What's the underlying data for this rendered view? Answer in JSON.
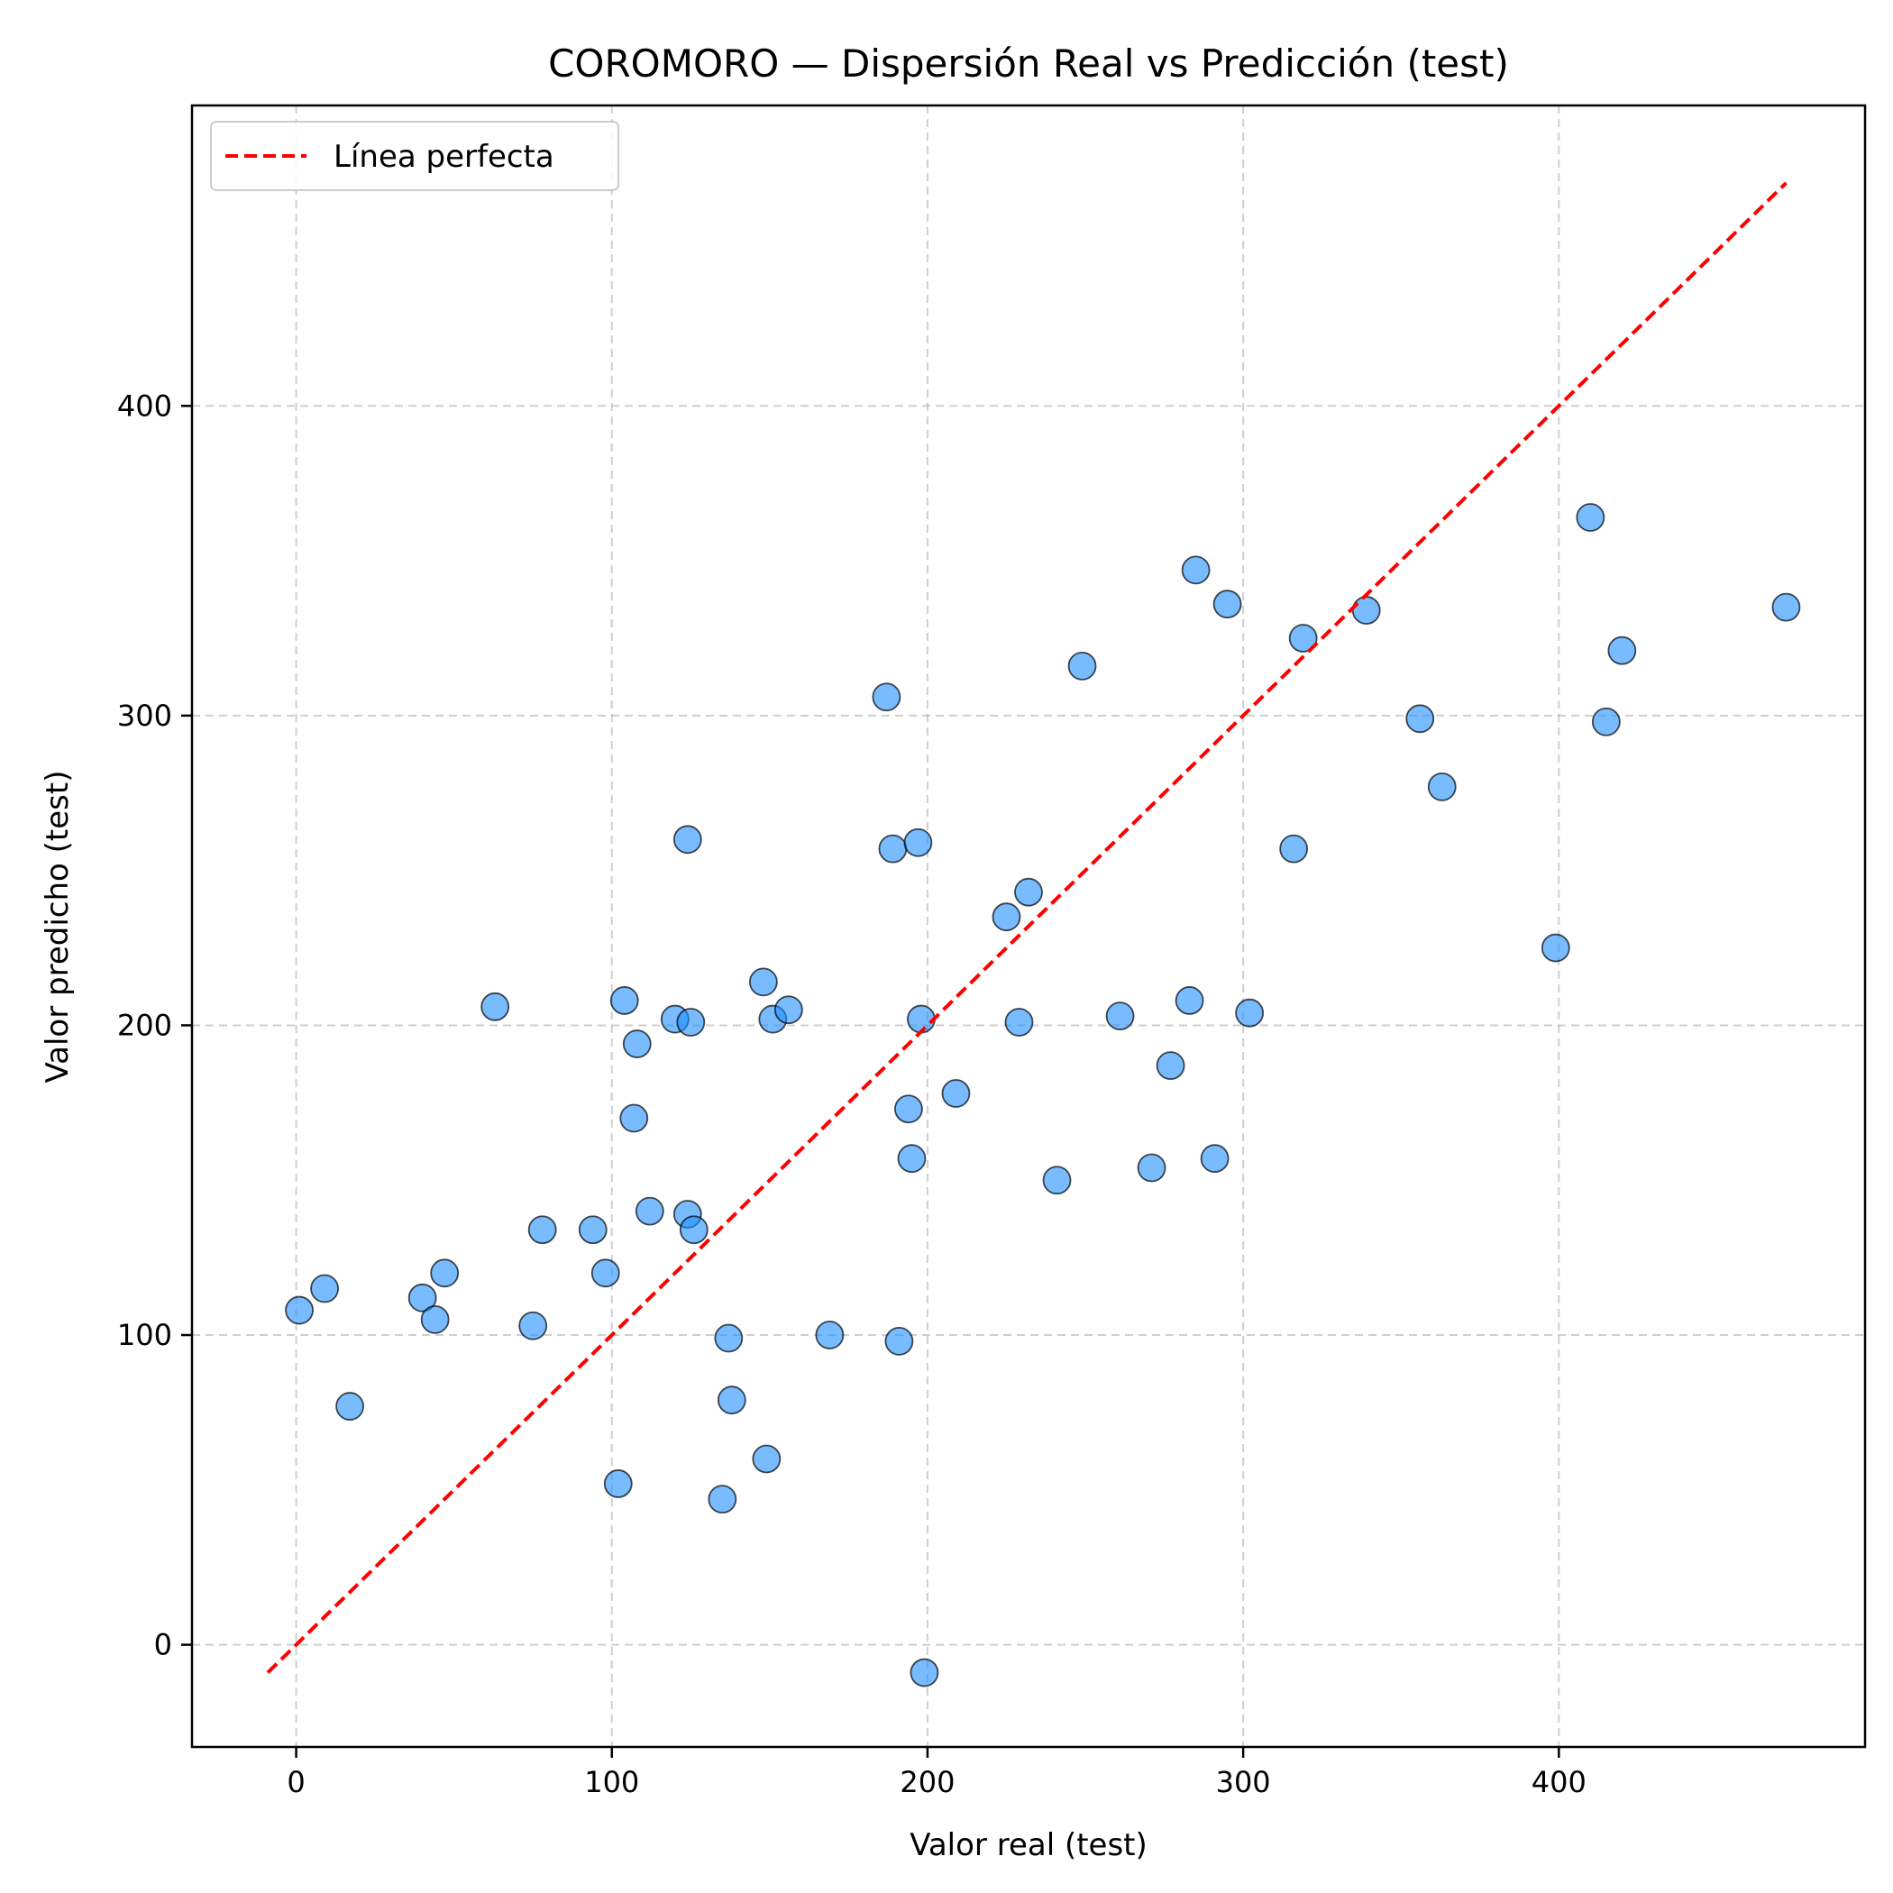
{
  "chart_data": {
    "type": "scatter",
    "title": "COROMORO — Dispersión Real vs Predicción (test)",
    "xlabel": "Valor real (test)",
    "ylabel": "Valor predicho (test)",
    "xlim": [
      -33,
      497
    ],
    "ylim": [
      -33,
      497
    ],
    "xticks": [
      0,
      100,
      200,
      300,
      400
    ],
    "yticks": [
      0,
      100,
      200,
      300,
      400
    ],
    "grid": true,
    "legend_position": "top-left",
    "colors": {
      "points": "#1e90ff",
      "line": "#ff0000"
    },
    "series": [
      {
        "type": "scatter",
        "points": [
          [
            1,
            108
          ],
          [
            9,
            115
          ],
          [
            17,
            77
          ],
          [
            40,
            112
          ],
          [
            44,
            105
          ],
          [
            47,
            120
          ],
          [
            63,
            206
          ],
          [
            75,
            103
          ],
          [
            78,
            134
          ],
          [
            94,
            134
          ],
          [
            98,
            120
          ],
          [
            102,
            52
          ],
          [
            104,
            208
          ],
          [
            107,
            170
          ],
          [
            108,
            194
          ],
          [
            112,
            140
          ],
          [
            120,
            202
          ],
          [
            124,
            139
          ],
          [
            124,
            260
          ],
          [
            125,
            201
          ],
          [
            126,
            134
          ],
          [
            135,
            47
          ],
          [
            137,
            99
          ],
          [
            138,
            79
          ],
          [
            148,
            214
          ],
          [
            149,
            60
          ],
          [
            151,
            202
          ],
          [
            156,
            205
          ],
          [
            169,
            100
          ],
          [
            187,
            306
          ],
          [
            189,
            257
          ],
          [
            191,
            98
          ],
          [
            194,
            173
          ],
          [
            195,
            157
          ],
          [
            197,
            259
          ],
          [
            198,
            202
          ],
          [
            199,
            -9
          ],
          [
            209,
            178
          ],
          [
            225,
            235
          ],
          [
            229,
            201
          ],
          [
            232,
            243
          ],
          [
            241,
            150
          ],
          [
            249,
            316
          ],
          [
            261,
            203
          ],
          [
            271,
            154
          ],
          [
            277,
            187
          ],
          [
            283,
            208
          ],
          [
            285,
            347
          ],
          [
            291,
            157
          ],
          [
            295,
            336
          ],
          [
            302,
            204
          ],
          [
            316,
            257
          ],
          [
            319,
            325
          ],
          [
            339,
            334
          ],
          [
            356,
            299
          ],
          [
            363,
            277
          ],
          [
            399,
            225
          ],
          [
            410,
            364
          ],
          [
            415,
            298
          ],
          [
            420,
            321
          ],
          [
            472,
            335
          ]
        ]
      },
      {
        "name": "Línea perfecta",
        "type": "line",
        "style": "dashed",
        "x": [
          -9,
          472
        ],
        "y": [
          -9,
          472
        ]
      }
    ]
  }
}
